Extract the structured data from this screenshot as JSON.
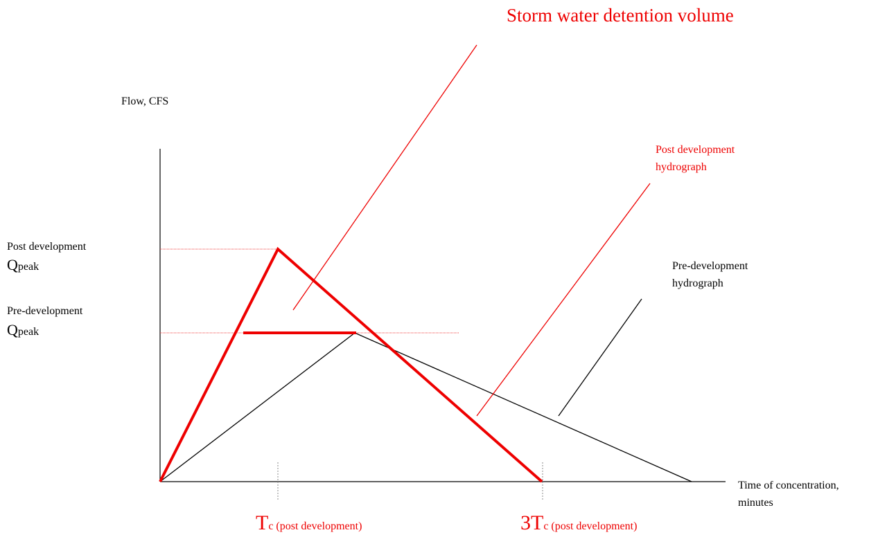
{
  "title": "Storm water detention volume",
  "y_axis_label": "Flow, CFS",
  "x_axis_label": [
    "Time of concentration,",
    "minutes"
  ],
  "post_hydrograph_label": [
    "Post development",
    "hydrograph"
  ],
  "pre_hydrograph_label": [
    "Pre-development",
    "hydrograph"
  ],
  "post_qpeak_label": {
    "line1": "Post development",
    "main": "Q",
    "sub": "peak"
  },
  "pre_qpeak_label": {
    "line1": "Pre-development",
    "main": "Q",
    "sub": "peak"
  },
  "x_marks": [
    {
      "main": "T",
      "sub": "c (post development)"
    },
    {
      "main": "3T",
      "sub": "c (post development)"
    }
  ]
}
